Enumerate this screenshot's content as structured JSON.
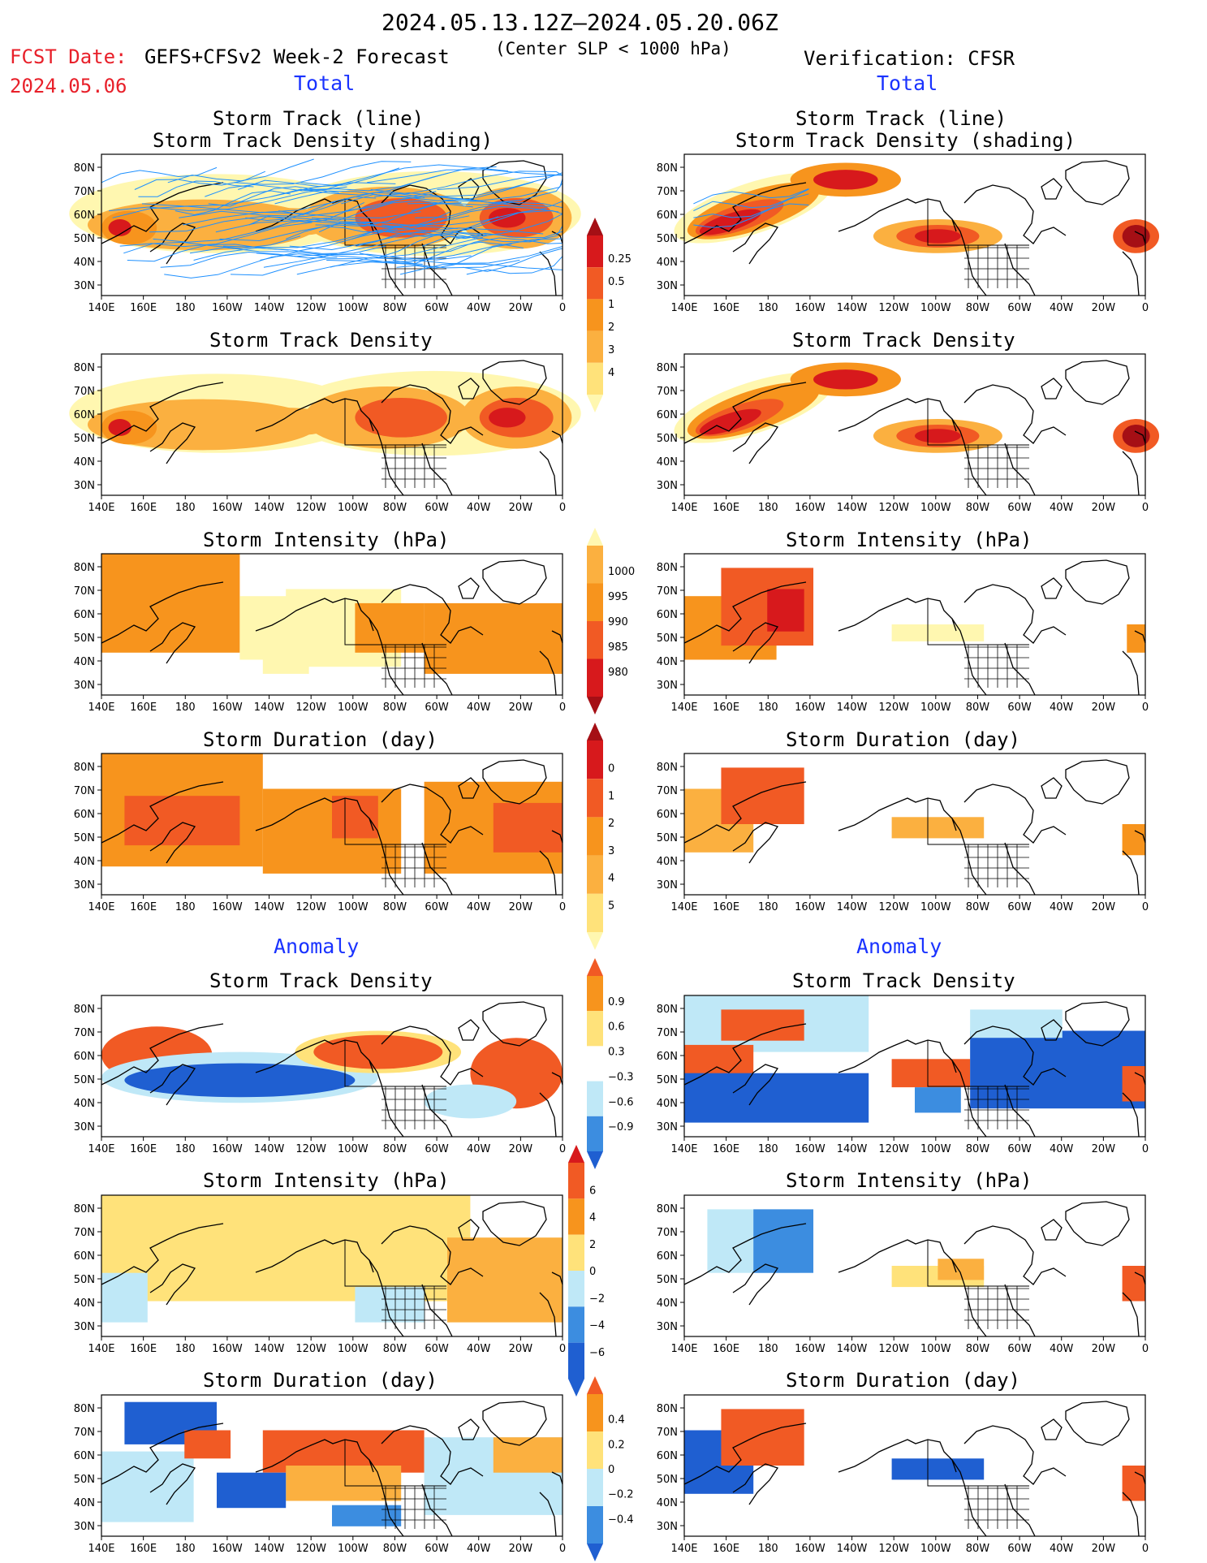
{
  "header": {
    "period": "2024.05.13.12Z–2024.05.20.06Z",
    "fcst_label": "FCST Date:",
    "fcst_date": "2024.05.06",
    "forecast_name": "GEFS+CFSv2 Week-2 Forecast",
    "criterion": "(Center SLP < 1000 hPa)",
    "verification": "Verification: CFSR"
  },
  "sections": {
    "total": "Total",
    "anomaly": "Anomaly"
  },
  "panel_titles": {
    "track_line": "Storm Track (line)",
    "track_shading": "Storm Track Density (shading)",
    "density": "Storm Track Density",
    "intensity": "Storm Intensity (hPa)",
    "duration": "Storm Duration (day)"
  },
  "axes": {
    "lon_ticks": [
      "140E",
      "160E",
      "180",
      "160W",
      "140W",
      "120W",
      "100W",
      "80W",
      "60W",
      "40W",
      "20W",
      "0"
    ],
    "lat_ticks": [
      "80N",
      "70N",
      "60N",
      "50N",
      "40N",
      "30N"
    ]
  },
  "colorbars": {
    "total_density": [
      "0.25",
      "0.5",
      "1",
      "2",
      "3",
      "4"
    ],
    "total_intensity": [
      "1000",
      "995",
      "990",
      "985",
      "980"
    ],
    "total_duration": [
      "0",
      "1",
      "2",
      "3",
      "4",
      "5"
    ],
    "anom_density": [
      "0.9",
      "0.6",
      "0.3",
      "−0.3",
      "−0.6",
      "−0.9"
    ],
    "anom_intensity": [
      "6",
      "4",
      "2",
      "0",
      "−2",
      "−4",
      "−6"
    ],
    "anom_duration": [
      "0.4",
      "0.2",
      "0",
      "−0.2",
      "−0.4"
    ]
  },
  "colors": {
    "light_yellow": "#fff7b0",
    "yellow": "#ffe27a",
    "light_orange": "#fbb040",
    "orange": "#f7941d",
    "red_orange": "#f15a24",
    "red": "#d7191c",
    "dark_red": "#a50f15",
    "light_blue": "#bfe8f7",
    "mid_blue": "#3c8de0",
    "blue": "#1f5fd1",
    "track_blue": "#1e90ff"
  }
}
